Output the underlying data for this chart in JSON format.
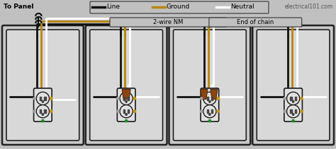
{
  "bg_color": "#c0c0c0",
  "wire_black": "#111111",
  "wire_ground": "#b8860b",
  "wire_neutral": "#ffffff",
  "wire_lw": 1.8,
  "box_edge": "#222222",
  "box_face": "#c8c8c8",
  "inner_box_face": "#d8d8d8",
  "outlet_face": "#e0e0e0",
  "outlet_dark": "#1a1a1a",
  "top_left_label": "To Panel",
  "label_2wire": "2-wire NM",
  "label_endchain": "End of chain",
  "watermark": "electrical101.com",
  "legend_line_label": "Line",
  "legend_ground_label": "Ground",
  "legend_neutral_label": "Neutral"
}
